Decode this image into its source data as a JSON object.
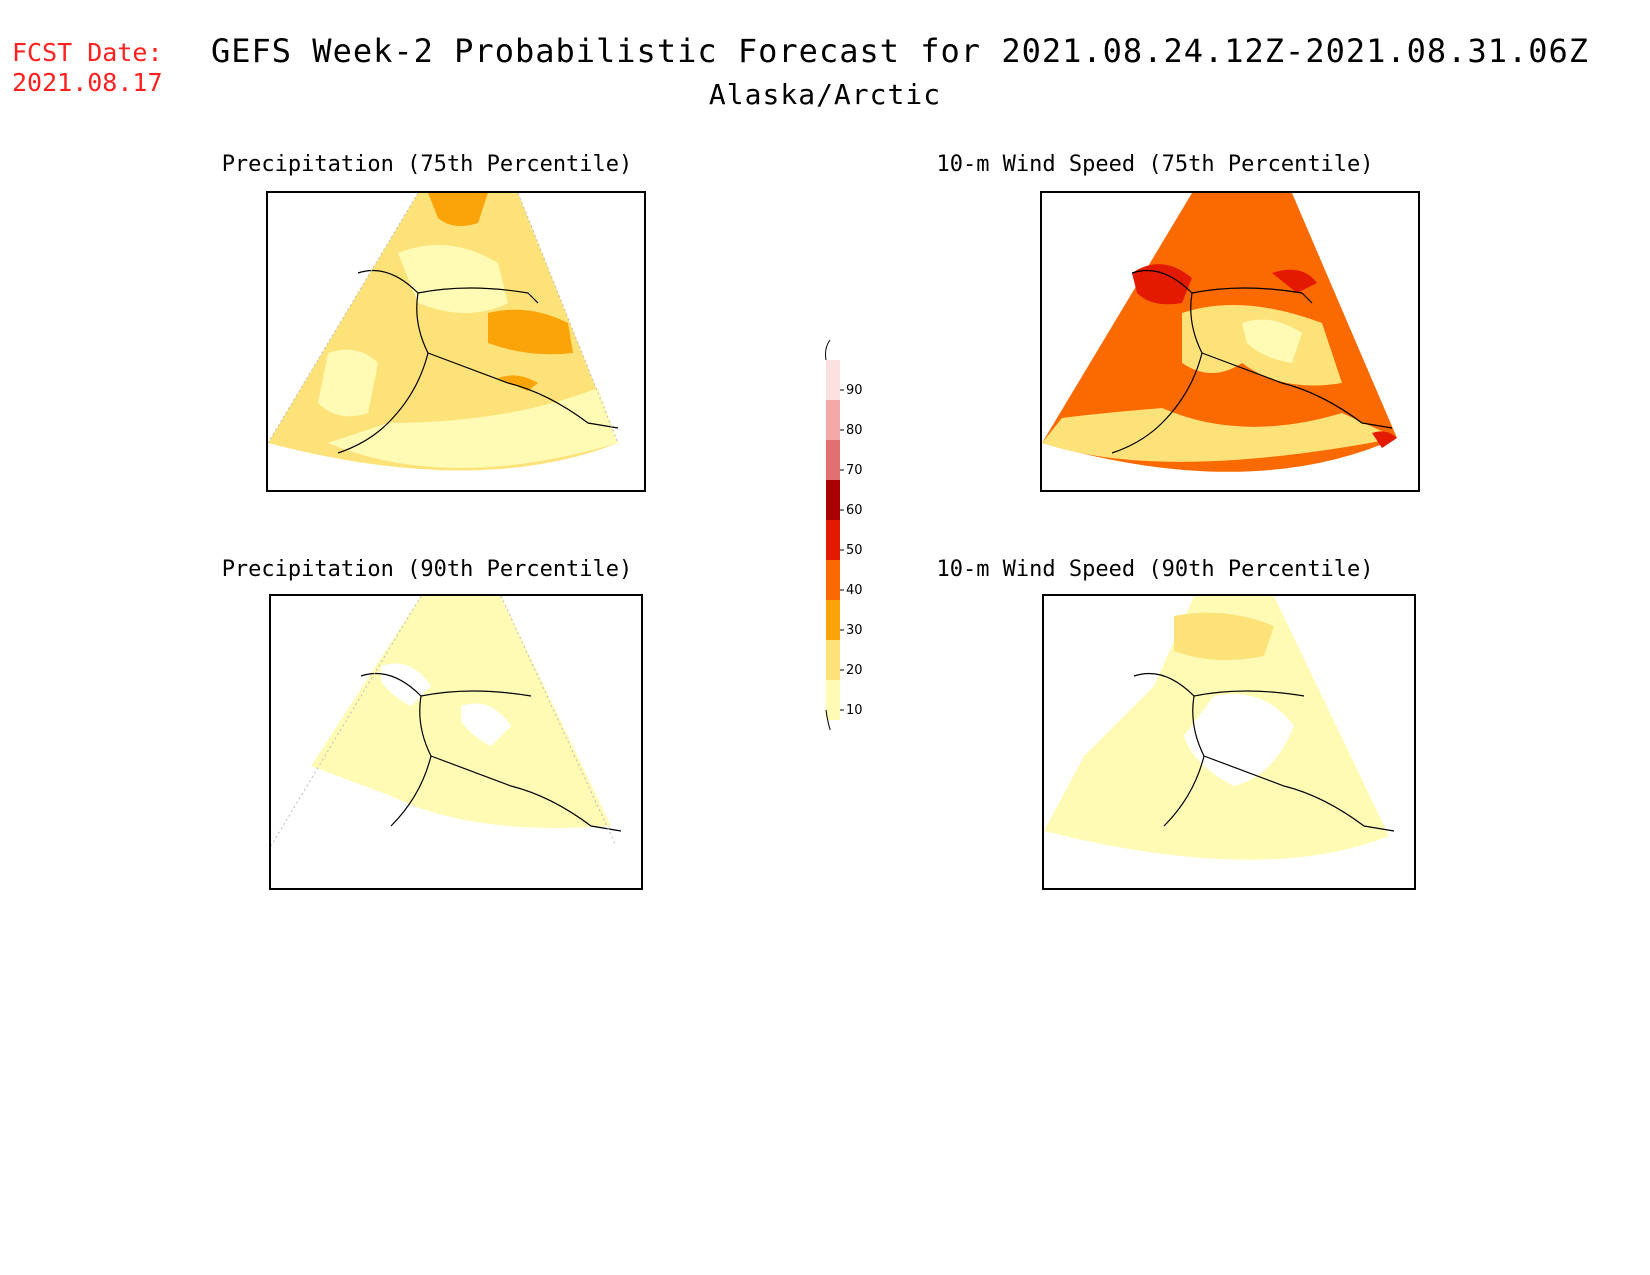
{
  "forecast_date": {
    "label": "FCST Date:",
    "value": "2021.08.17"
  },
  "title": "GEFS Week-2 Probabilistic Forecast for 2021.08.24.12Z-2021.08.31.06Z",
  "subtitle": "Alaska/Arctic",
  "panels": [
    {
      "id": "precip75",
      "title": "Precipitation (75th Percentile)"
    },
    {
      "id": "wind75",
      "title": "10-m Wind Speed (75th Percentile)"
    },
    {
      "id": "precip90",
      "title": "Precipitation (90th Percentile)"
    },
    {
      "id": "wind90",
      "title": "10-m Wind Speed (90th Percentile)"
    }
  ],
  "colorbar": {
    "levels": [
      "10",
      "20",
      "30",
      "40",
      "50",
      "60",
      "70",
      "80",
      "90"
    ],
    "colors": {
      "c10_20": "#fffbb5",
      "c20_30": "#fde27a",
      "c30_40": "#fba40a",
      "c40_50": "#fb6a00",
      "c50_60": "#e31a00",
      "c60_70": "#a80000",
      "c70_80": "#e07070",
      "c80_90": "#f5a8a8",
      "c90": "#fde0e0"
    }
  }
}
